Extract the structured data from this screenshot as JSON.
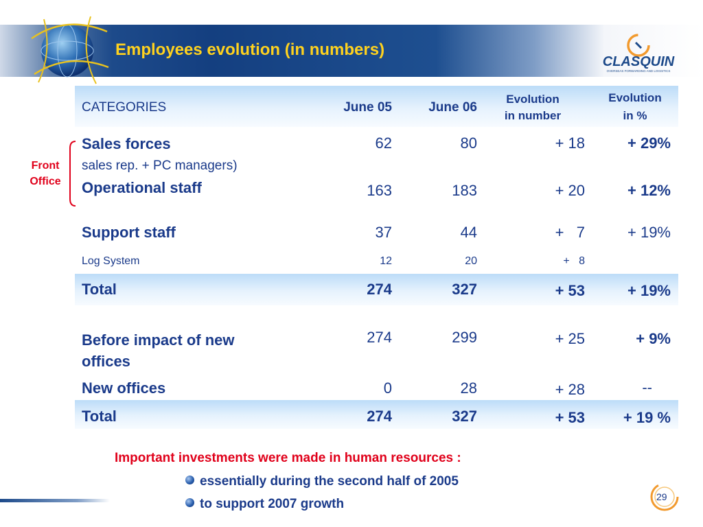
{
  "slide": {
    "title": "Employees evolution (in numbers)",
    "page_number": "29"
  },
  "logo": {
    "brand": "CLASQUIN",
    "tagline": "OVERSEAS FORWARDING AND LOGISTICS"
  },
  "bracket_label": [
    "Front",
    "Office"
  ],
  "table": {
    "headers": {
      "categories": "CATEGORIES",
      "june05": "June 05",
      "june06": "June 06",
      "evo_number": [
        "Evolution",
        "in number"
      ],
      "evo_percent": [
        "Evolution",
        "in %"
      ]
    },
    "rows": [
      {
        "category": "Sales forces",
        "note": "sales rep. + PC managers)",
        "june05": "62",
        "june06": "80",
        "evo_number": "+ 18",
        "evo_percent": "+ 29%"
      },
      {
        "category": "Operational staff",
        "june05": "163",
        "june06": "183",
        "evo_number": "+ 20",
        "evo_percent": "+ 12%"
      },
      {
        "category": "Support staff",
        "june05": "37",
        "june06": "44",
        "evo_number": "+   7",
        "evo_percent": "+ 19%"
      },
      {
        "category": "Log System",
        "june05": "12",
        "june06": "20",
        "evo_number": "+   8",
        "evo_percent": ""
      },
      {
        "category": "Total",
        "june05": "274",
        "june06": "327",
        "evo_number": "+ 53",
        "evo_percent": "+ 19%"
      },
      {
        "category": [
          "Before impact of new",
          "offices"
        ],
        "june05": "274",
        "june06": "299",
        "evo_number": "+ 25",
        "evo_percent": "+ 9%"
      },
      {
        "category": "New offices",
        "june05": "0",
        "june06": "28",
        "evo_number": "+ 28",
        "evo_percent": "--"
      },
      {
        "category": "Total",
        "june05": "274",
        "june06": "327",
        "evo_number": "+ 53",
        "evo_percent": "+ 19 %"
      }
    ]
  },
  "footer": {
    "note": "Important investments were made in human resources :",
    "bullets": [
      "essentially during the second half of 2005",
      "to support 2007 growth"
    ]
  },
  "colors": {
    "title": "#ffd21e",
    "text": "#1a3a8a",
    "accent_red": "#e0001a",
    "header_band": "#143f80"
  }
}
